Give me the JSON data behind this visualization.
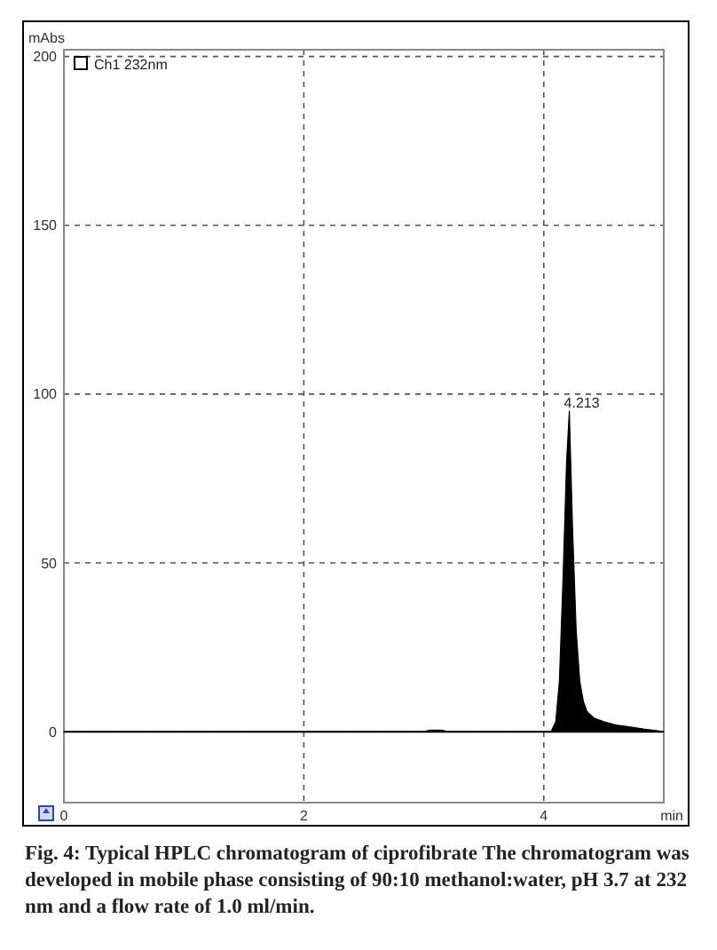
{
  "chart_data": {
    "type": "area",
    "xlabel": "min",
    "ylabel": "mAbs",
    "xlim": [
      0,
      5
    ],
    "ylim": [
      -21,
      202
    ],
    "xticks": [
      0,
      2,
      4
    ],
    "yticks": [
      0,
      50,
      100,
      150,
      200
    ],
    "grid": true,
    "legend": "top left",
    "series": [
      {
        "name": "Ch1 232nm",
        "color": "#000000",
        "x": [
          0,
          1,
          2,
          3,
          3.05,
          3.1,
          3.15,
          3.2,
          4,
          4.06,
          4.1,
          4.13,
          4.16,
          4.19,
          4.213,
          4.24,
          4.27,
          4.3,
          4.33,
          4.36,
          4.42,
          4.5,
          4.6,
          4.7,
          4.83,
          4.95,
          5
        ],
        "values": [
          0,
          0,
          0,
          0,
          0.5,
          0.5,
          0.5,
          0,
          0,
          0,
          3,
          15,
          45,
          80,
          95,
          60,
          30,
          15,
          9,
          6,
          4,
          3,
          2,
          1.5,
          0.8,
          0.3,
          0
        ]
      }
    ],
    "annotations": [
      {
        "text": "4.213",
        "x": 4.213,
        "y": 95
      },
      "Fig. 4: Typical HPLC chromatogram of ciprofibrate The chromatogram was developed in mobile phase consisting of 90:10 methanol:water, pH 3.7 at 232 nm and a flow rate of 1.0 ml/min."
    ]
  }
}
